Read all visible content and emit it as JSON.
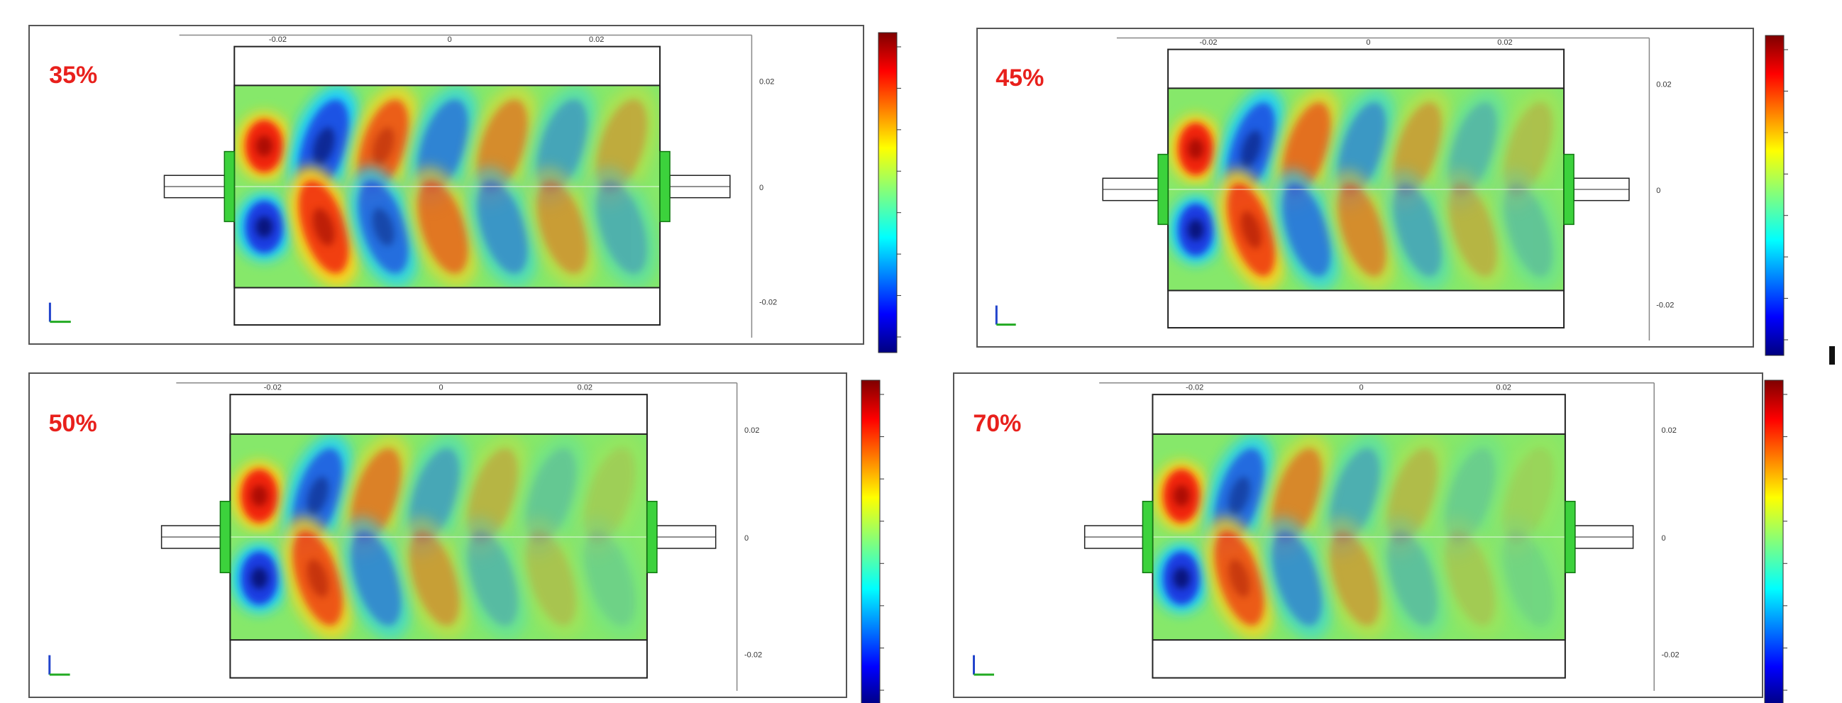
{
  "panels": [
    {
      "label": "35%",
      "x_ticks": [
        "-0.02",
        "0",
        "0.02"
      ],
      "y_ticks": [
        "0.02",
        "0",
        "-0.02"
      ]
    },
    {
      "label": "45%",
      "x_ticks": [
        "-0.02",
        "0",
        "0.02"
      ],
      "y_ticks": [
        "0.02",
        "0",
        "-0.02"
      ]
    },
    {
      "label": "50%",
      "x_ticks": [
        "-0.02",
        "0",
        "0.02"
      ],
      "y_ticks": [
        "0.02",
        "0",
        "-0.02"
      ]
    },
    {
      "label": "70%",
      "x_ticks": [
        "-0.02",
        "0",
        "0.02"
      ],
      "y_ticks": [
        "0.02",
        "0",
        "-0.02"
      ]
    }
  ]
}
